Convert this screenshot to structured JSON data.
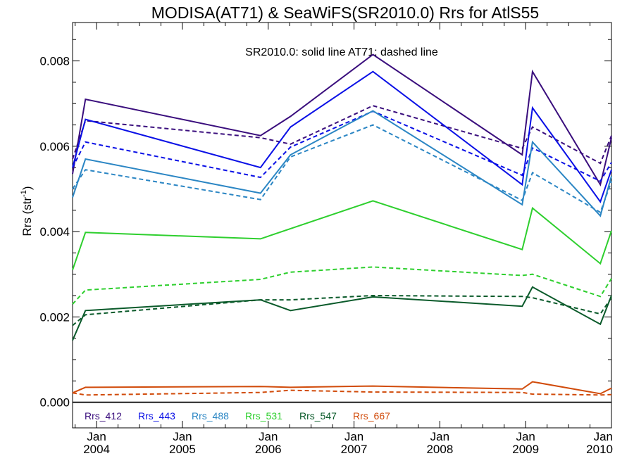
{
  "chart_data": {
    "type": "line",
    "title": "MODISA(AT71) & SeaWiFS(SR2010.0)  Rrs for AtlS55",
    "annotation": "SR2010.0: solid line   AT71: dashed line",
    "ylabel": "Rrs (str",
    "ylabel_sup": "-1",
    "ylim": [
      -0.0006,
      0.0089
    ],
    "xlim": [
      2003.72,
      2010.0
    ],
    "y_ticks": [
      "0.000",
      "0.002",
      "0.004",
      "0.006",
      "0.008"
    ],
    "y_tick_values": [
      0.0,
      0.002,
      0.004,
      0.006,
      0.008
    ],
    "x_ticks": [
      {
        "value": 2004.0,
        "month": "Jan",
        "year": "2004"
      },
      {
        "value": 2005.0,
        "month": "Jan",
        "year": "2005"
      },
      {
        "value": 2006.0,
        "month": "Jan",
        "year": "2006"
      },
      {
        "value": 2007.0,
        "month": "Jan",
        "year": "2007"
      },
      {
        "value": 2008.0,
        "month": "Jan",
        "year": "2008"
      },
      {
        "value": 2009.0,
        "month": "Jan",
        "year": "2009"
      },
      {
        "value": 2010.0,
        "month": "Jan",
        "year": "2010"
      }
    ],
    "zero_line": 0.0,
    "series": [
      {
        "name": "Rrs_412",
        "color": "#3a0e7d",
        "dash": false,
        "x": [
          2003.72,
          2003.87,
          2005.91,
          2006.26,
          2007.22,
          2008.96,
          2009.08,
          2009.87,
          2010.0
        ],
        "y": [
          0.00535,
          0.0071,
          0.00625,
          0.0067,
          0.00815,
          0.0058,
          0.00775,
          0.0051,
          0.0062
        ]
      },
      {
        "name": "Rrs_412",
        "color": "#3a0e7d",
        "dash": true,
        "x": [
          2003.72,
          2003.87,
          2005.91,
          2006.26,
          2007.22,
          2008.96,
          2009.08,
          2009.87,
          2010.0
        ],
        "y": [
          0.0057,
          0.0066,
          0.0062,
          0.00605,
          0.00695,
          0.00595,
          0.00645,
          0.0056,
          0.00625
        ]
      },
      {
        "name": "Rrs_443",
        "color": "#0a10e6",
        "dash": false,
        "x": [
          2003.72,
          2003.87,
          2005.91,
          2006.26,
          2007.22,
          2008.96,
          2009.08,
          2009.87,
          2010.0
        ],
        "y": [
          0.0055,
          0.00663,
          0.0055,
          0.00645,
          0.00775,
          0.0051,
          0.0069,
          0.0047,
          0.00545
        ]
      },
      {
        "name": "Rrs_443",
        "color": "#0a10e6",
        "dash": true,
        "x": [
          2003.72,
          2003.87,
          2005.91,
          2006.26,
          2007.22,
          2008.96,
          2009.08,
          2009.87,
          2010.0
        ],
        "y": [
          0.0055,
          0.0061,
          0.00527,
          0.00598,
          0.00682,
          0.00532,
          0.00596,
          0.00518,
          0.00562
        ]
      },
      {
        "name": "Rrs_488",
        "color": "#2b86c4",
        "dash": false,
        "x": [
          2003.72,
          2003.87,
          2005.91,
          2006.26,
          2007.22,
          2008.96,
          2009.08,
          2009.87,
          2010.0
        ],
        "y": [
          0.0048,
          0.0057,
          0.0049,
          0.0058,
          0.00683,
          0.00463,
          0.0061,
          0.00437,
          0.0053
        ]
      },
      {
        "name": "Rrs_488",
        "color": "#2b86c4",
        "dash": true,
        "x": [
          2003.72,
          2003.87,
          2005.91,
          2006.26,
          2007.22,
          2008.96,
          2009.08,
          2009.87,
          2010.0
        ],
        "y": [
          0.005,
          0.00545,
          0.00475,
          0.00575,
          0.0065,
          0.00473,
          0.00538,
          0.00445,
          0.00518
        ]
      },
      {
        "name": "Rrs_531",
        "color": "#2ecf2e",
        "dash": false,
        "x": [
          2003.72,
          2003.87,
          2005.91,
          2007.22,
          2008.96,
          2009.08,
          2009.87,
          2010.0
        ],
        "y": [
          0.0031,
          0.00398,
          0.00383,
          0.00472,
          0.00358,
          0.00455,
          0.00325,
          0.00402
        ]
      },
      {
        "name": "Rrs_531",
        "color": "#2ecf2e",
        "dash": true,
        "x": [
          2003.72,
          2003.87,
          2005.91,
          2006.26,
          2007.22,
          2008.96,
          2009.08,
          2009.87,
          2010.0
        ],
        "y": [
          0.0023,
          0.00263,
          0.00288,
          0.00305,
          0.00317,
          0.00297,
          0.003,
          0.00248,
          0.0029
        ]
      },
      {
        "name": "Rrs_547",
        "color": "#0a5a2a",
        "dash": false,
        "x": [
          2003.72,
          2003.87,
          2005.91,
          2006.26,
          2007.22,
          2008.96,
          2009.08,
          2009.87,
          2010.0
        ],
        "y": [
          0.00145,
          0.00215,
          0.0024,
          0.00215,
          0.00247,
          0.00225,
          0.0027,
          0.00183,
          0.0025
        ]
      },
      {
        "name": "Rrs_547",
        "color": "#0a5a2a",
        "dash": true,
        "x": [
          2003.72,
          2003.87,
          2005.91,
          2006.26,
          2007.22,
          2008.96,
          2009.08,
          2009.87,
          2010.0
        ],
        "y": [
          0.0018,
          0.00205,
          0.0024,
          0.0024,
          0.0025,
          0.00248,
          0.00245,
          0.00207,
          0.00245
        ]
      },
      {
        "name": "Rrs_667",
        "color": "#d14b0a",
        "dash": false,
        "x": [
          2003.72,
          2003.87,
          2005.91,
          2006.26,
          2007.22,
          2008.96,
          2009.08,
          2009.87,
          2010.0
        ],
        "y": [
          0.00022,
          0.00035,
          0.00037,
          0.00035,
          0.00038,
          0.00031,
          0.00048,
          0.0002,
          0.00033
        ]
      },
      {
        "name": "Rrs_667",
        "color": "#d14b0a",
        "dash": true,
        "x": [
          2003.72,
          2003.87,
          2005.91,
          2006.26,
          2007.22,
          2008.96,
          2009.08,
          2009.87,
          2010.0
        ],
        "y": [
          0.00022,
          0.00017,
          0.00023,
          0.00028,
          0.00024,
          0.00023,
          0.00019,
          0.00017,
          0.00018
        ]
      }
    ],
    "legend": [
      {
        "name": "Rrs_412",
        "color": "#3a0e7d"
      },
      {
        "name": "Rrs_443",
        "color": "#0a10e6"
      },
      {
        "name": "Rrs_488",
        "color": "#2b86c4"
      },
      {
        "name": "Rrs_531",
        "color": "#2ecf2e"
      },
      {
        "name": "Rrs_547",
        "color": "#0a5a2a"
      },
      {
        "name": "Rrs_667",
        "color": "#d14b0a"
      }
    ],
    "legend_placement": "bottom-left inside plot"
  }
}
